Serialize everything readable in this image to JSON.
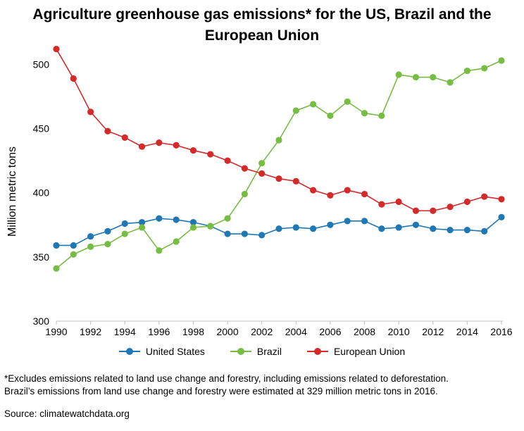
{
  "colors": {
    "united_states": "#1f78b4",
    "brazil": "#77bc43",
    "european_union": "#d42a2a",
    "axis": "#bfbfbf"
  },
  "chart_data": {
    "type": "line",
    "title": "Agriculture greenhouse gas emissions* for the US, Brazil and the European Union",
    "xlabel": "",
    "ylabel": "Million metric tons",
    "x": [
      1990,
      1991,
      1992,
      1993,
      1994,
      1995,
      1996,
      1997,
      1998,
      1999,
      2000,
      2001,
      2002,
      2003,
      2004,
      2005,
      2006,
      2007,
      2008,
      2009,
      2010,
      2011,
      2012,
      2013,
      2014,
      2015,
      2016
    ],
    "x_ticks": [
      "1990",
      "1992",
      "1994",
      "1996",
      "1998",
      "2000",
      "2002",
      "2004",
      "2006",
      "2008",
      "2010",
      "2012",
      "2014",
      "2016"
    ],
    "xlim": [
      1990,
      2016
    ],
    "ylim": [
      300,
      520
    ],
    "y_ticks": [
      "300",
      "350",
      "400",
      "450",
      "500"
    ],
    "grid": false,
    "legend_position": "bottom",
    "series": [
      {
        "name": "United States",
        "color": "#1f78b4",
        "values": [
          359,
          359,
          366,
          370,
          376,
          377,
          380,
          379,
          377,
          374,
          368,
          368,
          367,
          372,
          373,
          372,
          375,
          378,
          378,
          372,
          373,
          375,
          372,
          371,
          371,
          370,
          381
        ]
      },
      {
        "name": "Brazil",
        "color": "#77bc43",
        "values": [
          341,
          352,
          358,
          360,
          368,
          373,
          355,
          362,
          373,
          374,
          380,
          399,
          423,
          441,
          464,
          469,
          460,
          471,
          462,
          460,
          492,
          490,
          490,
          486,
          495,
          497,
          503
        ]
      },
      {
        "name": "European Union",
        "color": "#d42a2a",
        "values": [
          512,
          489,
          463,
          448,
          443,
          436,
          439,
          437,
          433,
          430,
          425,
          419,
          415,
          411,
          409,
          402,
          398,
          402,
          399,
          391,
          393,
          386,
          386,
          389,
          393,
          397,
          395
        ]
      }
    ]
  },
  "footnote_line1": "*Excludes emissions related to land use change and forestry, including emissions related to deforestation.",
  "footnote_line2": "Brazil’s emissions from land use change and forestry were estimated at 329 million metric tons in 2016.",
  "source": "Source: climatewatchdata.org"
}
